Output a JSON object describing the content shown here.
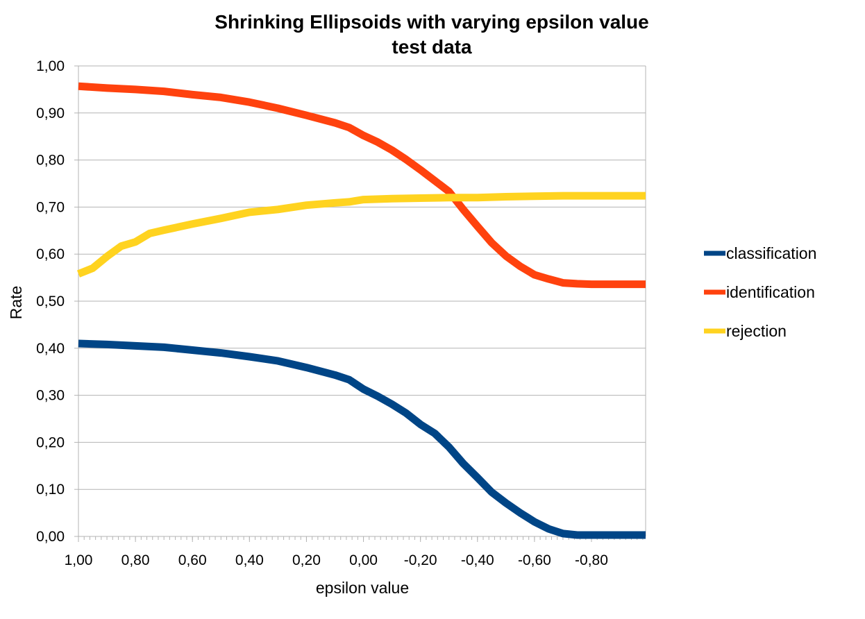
{
  "chart_data": {
    "type": "line",
    "title": [
      "Shrinking Ellipsoids with varying epsilon value",
      "test data"
    ],
    "xlabel": "epsilon value",
    "ylabel": "Rate",
    "xlim": [
      1.0,
      -0.99
    ],
    "ylim": [
      0,
      1.0
    ],
    "x_tick_labels": [
      "1,00",
      "0,80",
      "0,60",
      "0,40",
      "0,20",
      "0,00",
      "-0,20",
      "-0,40",
      "-0,60",
      "-0,80"
    ],
    "x_ticks": [
      1.0,
      0.8,
      0.6,
      0.4,
      0.2,
      0.0,
      -0.2,
      -0.4,
      -0.6,
      -0.8
    ],
    "y_tick_labels": [
      "0,00",
      "0,10",
      "0,20",
      "0,30",
      "0,40",
      "0,50",
      "0,60",
      "0,70",
      "0,80",
      "0,90",
      "1,00"
    ],
    "y_ticks": [
      0,
      0.1,
      0.2,
      0.3,
      0.4,
      0.5,
      0.6,
      0.7,
      0.8,
      0.9,
      1.0
    ],
    "grid": "horizontal",
    "legend": "right",
    "series": [
      {
        "name": "classification",
        "color": "#004586",
        "x": [
          1.0,
          0.9,
          0.8,
          0.7,
          0.6,
          0.5,
          0.4,
          0.3,
          0.2,
          0.1,
          0.05,
          0.0,
          -0.05,
          -0.1,
          -0.15,
          -0.2,
          -0.25,
          -0.3,
          -0.35,
          -0.4,
          -0.45,
          -0.5,
          -0.55,
          -0.6,
          -0.65,
          -0.7,
          -0.75,
          -0.8,
          -0.9,
          -0.99
        ],
        "values": [
          0.41,
          0.408,
          0.405,
          0.402,
          0.396,
          0.39,
          0.382,
          0.373,
          0.359,
          0.343,
          0.333,
          0.313,
          0.298,
          0.281,
          0.262,
          0.238,
          0.219,
          0.19,
          0.155,
          0.125,
          0.094,
          0.071,
          0.05,
          0.031,
          0.016,
          0.006,
          0.003,
          0.003,
          0.003,
          0.003
        ]
      },
      {
        "name": "identification",
        "color": "#ff420e",
        "x": [
          1.0,
          0.9,
          0.8,
          0.7,
          0.6,
          0.5,
          0.4,
          0.3,
          0.2,
          0.1,
          0.05,
          0.0,
          -0.05,
          -0.1,
          -0.15,
          -0.2,
          -0.25,
          -0.3,
          -0.35,
          -0.4,
          -0.45,
          -0.5,
          -0.55,
          -0.6,
          -0.65,
          -0.7,
          -0.75,
          -0.8,
          -0.9,
          -0.99
        ],
        "values": [
          0.957,
          0.953,
          0.95,
          0.946,
          0.939,
          0.933,
          0.923,
          0.91,
          0.895,
          0.879,
          0.869,
          0.852,
          0.838,
          0.821,
          0.801,
          0.779,
          0.756,
          0.733,
          0.695,
          0.659,
          0.624,
          0.596,
          0.574,
          0.556,
          0.547,
          0.539,
          0.537,
          0.536,
          0.536,
          0.536
        ]
      },
      {
        "name": "rejection",
        "color": "#ffd320",
        "x": [
          1.0,
          0.95,
          0.9,
          0.85,
          0.8,
          0.75,
          0.7,
          0.6,
          0.5,
          0.4,
          0.3,
          0.2,
          0.1,
          0.05,
          0.0,
          -0.1,
          -0.2,
          -0.3,
          -0.4,
          -0.5,
          -0.6,
          -0.7,
          -0.8,
          -0.9,
          -0.99
        ],
        "values": [
          0.558,
          0.57,
          0.595,
          0.617,
          0.626,
          0.644,
          0.651,
          0.664,
          0.676,
          0.689,
          0.695,
          0.704,
          0.709,
          0.711,
          0.716,
          0.718,
          0.719,
          0.72,
          0.72,
          0.722,
          0.723,
          0.724,
          0.724,
          0.724,
          0.724
        ]
      }
    ]
  }
}
